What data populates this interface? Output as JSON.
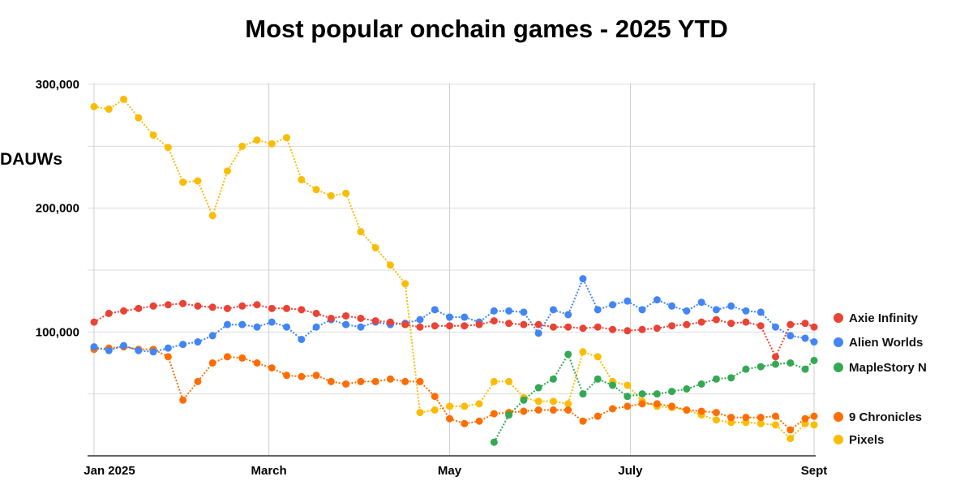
{
  "chart_data": {
    "type": "line",
    "title": "Most popular onchain games - 2025 YTD",
    "ylabel": "DAUWs",
    "xlabel": "",
    "ylim": [
      0,
      300000
    ],
    "xlim": [
      "2025-01-01",
      "2025-09-01"
    ],
    "grid": true,
    "legend_position": "right",
    "y_ticks": [
      {
        "value": 100000,
        "label": "100,000"
      },
      {
        "value": 200000,
        "label": "200,000"
      },
      {
        "value": 300000,
        "label": "300,000"
      }
    ],
    "y_gridlines": [
      0,
      50000,
      100000,
      150000,
      200000,
      250000,
      300000
    ],
    "x_ticks": [
      {
        "date": "2025-01-01",
        "label": "Jan 2025"
      },
      {
        "date": "2025-03-01",
        "label": "March"
      },
      {
        "date": "2025-05-01",
        "label": "May"
      },
      {
        "date": "2025-07-01",
        "label": "July"
      },
      {
        "date": "2025-09-01",
        "label": "Sept"
      }
    ],
    "x": [
      "2025-01-01",
      "2025-01-06",
      "2025-01-11",
      "2025-01-16",
      "2025-01-21",
      "2025-01-26",
      "2025-01-31",
      "2025-02-05",
      "2025-02-10",
      "2025-02-15",
      "2025-02-20",
      "2025-02-25",
      "2025-03-02",
      "2025-03-07",
      "2025-03-12",
      "2025-03-17",
      "2025-03-22",
      "2025-03-27",
      "2025-04-01",
      "2025-04-06",
      "2025-04-11",
      "2025-04-16",
      "2025-04-21",
      "2025-04-26",
      "2025-05-01",
      "2025-05-06",
      "2025-05-11",
      "2025-05-16",
      "2025-05-21",
      "2025-05-26",
      "2025-05-31",
      "2025-06-05",
      "2025-06-10",
      "2025-06-15",
      "2025-06-20",
      "2025-06-25",
      "2025-06-30",
      "2025-07-05",
      "2025-07-10",
      "2025-07-15",
      "2025-07-20",
      "2025-07-25",
      "2025-07-30",
      "2025-08-04",
      "2025-08-09",
      "2025-08-14",
      "2025-08-19",
      "2025-08-24",
      "2025-08-29",
      "2025-09-01"
    ],
    "series": [
      {
        "name": "Pixels",
        "color": "#FBBC04",
        "values": [
          282000,
          280000,
          288000,
          273000,
          259000,
          249000,
          221000,
          222000,
          194000,
          230000,
          250000,
          255000,
          252000,
          257000,
          223000,
          215000,
          210000,
          212000,
          181000,
          168000,
          154000,
          139000,
          35000,
          37000,
          40000,
          40000,
          42000,
          60000,
          60000,
          47000,
          44000,
          44000,
          42000,
          84000,
          80000,
          60000,
          57000,
          44000,
          40000,
          39000,
          37000,
          33000,
          29000,
          27000,
          27000,
          26000,
          25000,
          14000,
          26000,
          25000
        ]
      },
      {
        "name": "9 Chronicles",
        "color": "#FF6D01",
        "values": [
          86000,
          87000,
          88000,
          86000,
          86000,
          80000,
          45000,
          60000,
          75000,
          80000,
          79000,
          75000,
          71000,
          65000,
          64000,
          65000,
          60000,
          58000,
          60000,
          60000,
          62000,
          60000,
          60000,
          48000,
          30000,
          26000,
          28000,
          34000,
          35000,
          36000,
          37000,
          37000,
          37000,
          28000,
          32000,
          38000,
          40000,
          42000,
          42000,
          40000,
          37000,
          36000,
          35000,
          31000,
          31000,
          31000,
          32000,
          21000,
          30000,
          32000
        ]
      },
      {
        "name": "MapleStory N",
        "color": "#34A853",
        "values": [
          null,
          null,
          null,
          null,
          null,
          null,
          null,
          null,
          null,
          null,
          null,
          null,
          null,
          null,
          null,
          null,
          null,
          null,
          null,
          null,
          null,
          null,
          null,
          null,
          null,
          null,
          null,
          11000,
          33000,
          45000,
          55000,
          62000,
          82000,
          50000,
          62000,
          57000,
          48000,
          50000,
          50000,
          52000,
          54000,
          58000,
          62000,
          63000,
          70000,
          72000,
          74000,
          75000,
          70000,
          77000
        ]
      },
      {
        "name": "Alien Worlds",
        "color": "#4285F4",
        "values": [
          88000,
          85000,
          89000,
          85000,
          84000,
          87000,
          90000,
          92000,
          97000,
          106000,
          106000,
          104000,
          108000,
          104000,
          94000,
          104000,
          110000,
          106000,
          104000,
          108000,
          106000,
          107000,
          110000,
          118000,
          112000,
          112000,
          108000,
          117000,
          117000,
          116000,
          99000,
          118000,
          114000,
          143000,
          118000,
          122000,
          125000,
          118000,
          126000,
          121000,
          117000,
          124000,
          118000,
          121000,
          117000,
          116000,
          104000,
          97000,
          95000,
          92000
        ]
      },
      {
        "name": "Axie Infinity",
        "color": "#EA4335",
        "values": [
          108000,
          115000,
          117000,
          119000,
          121000,
          122000,
          123000,
          121000,
          120000,
          119000,
          121000,
          122000,
          119000,
          119000,
          118000,
          115000,
          111000,
          113000,
          111000,
          109000,
          108000,
          106000,
          104000,
          105000,
          105000,
          105000,
          106000,
          109000,
          107000,
          106000,
          106000,
          104000,
          104000,
          103000,
          104000,
          102000,
          101000,
          102000,
          103000,
          105000,
          106000,
          108000,
          110000,
          107000,
          108000,
          105000,
          80000,
          106000,
          107000,
          104000
        ]
      }
    ],
    "legend": [
      {
        "name": "Axie Infinity",
        "color": "#EA4335"
      },
      {
        "name": "Alien Worlds",
        "color": "#4285F4"
      },
      {
        "name": "MapleStory N",
        "color": "#34A853"
      },
      {
        "name": "9 Chronicles",
        "color": "#FF6D01"
      },
      {
        "name": "Pixels",
        "color": "#FBBC04"
      }
    ]
  }
}
